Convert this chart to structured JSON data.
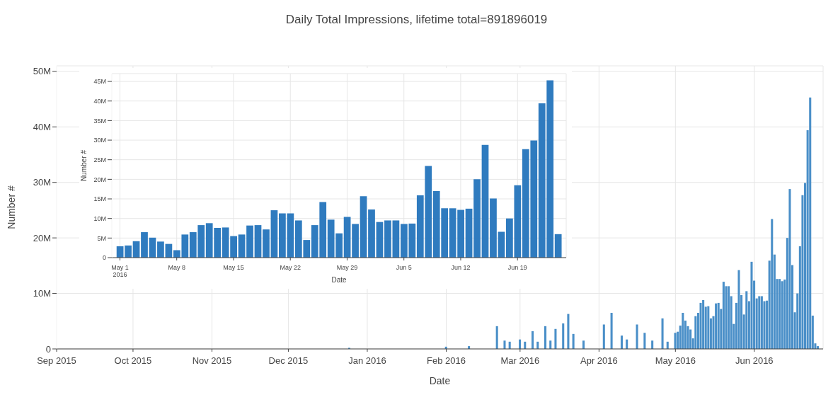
{
  "chart_data": [
    {
      "type": "bar",
      "title": "Daily Total Impressions, lifetime total=891896019",
      "xlabel": "Date",
      "ylabel": "Number #",
      "color": "#4a8fc8",
      "grid": true,
      "x": [
        "2015-12-25",
        "2016-02-01",
        "2016-02-10",
        "2016-02-18",
        "2016-02-21",
        "2016-02-24",
        "2016-02-26",
        "2016-03-01",
        "2016-03-03",
        "2016-03-06",
        "2016-03-08",
        "2016-03-11",
        "2016-03-13",
        "2016-03-15",
        "2016-03-18",
        "2016-03-20",
        "2016-03-22",
        "2016-03-26",
        "2016-04-01",
        "2016-04-03",
        "2016-04-06",
        "2016-04-10",
        "2016-04-12",
        "2016-04-16",
        "2016-04-19",
        "2016-04-22",
        "2016-04-26",
        "2016-04-28",
        "2016-05-01",
        "2016-05-02",
        "2016-05-03",
        "2016-05-04",
        "2016-05-05",
        "2016-05-06",
        "2016-05-07",
        "2016-05-08",
        "2016-05-09",
        "2016-05-10",
        "2016-05-11",
        "2016-05-12",
        "2016-05-13",
        "2016-05-14",
        "2016-05-15",
        "2016-05-16",
        "2016-05-17",
        "2016-05-18",
        "2016-05-19",
        "2016-05-20",
        "2016-05-21",
        "2016-05-22",
        "2016-05-23",
        "2016-05-24",
        "2016-05-25",
        "2016-05-26",
        "2016-05-27",
        "2016-05-28",
        "2016-05-29",
        "2016-05-30",
        "2016-05-31",
        "2016-06-01",
        "2016-06-02",
        "2016-06-03",
        "2016-06-04",
        "2016-06-05",
        "2016-06-06",
        "2016-06-07",
        "2016-06-08",
        "2016-06-09",
        "2016-06-10",
        "2016-06-11",
        "2016-06-12",
        "2016-06-13",
        "2016-06-14",
        "2016-06-15",
        "2016-06-16",
        "2016-06-17",
        "2016-06-18",
        "2016-06-19",
        "2016-06-20",
        "2016-06-21",
        "2016-06-22",
        "2016-06-23",
        "2016-06-24",
        "2016-06-25",
        "2016-06-26"
      ],
      "values": [
        200000,
        400000,
        500000,
        null,
        4100000,
        1500000,
        1300000,
        1700000,
        1300000,
        3200000,
        1300000,
        4100000,
        1500000,
        3600000,
        4600000,
        6300000,
        2700000,
        1500000,
        null,
        4400000,
        6500000,
        2400000,
        1700000,
        4400000,
        2900000,
        1500000,
        5500000,
        1300000,
        2900000,
        3100000,
        4200000,
        6500000,
        5100000,
        4100000,
        3500000,
        1900000,
        5900000,
        6500000,
        8300000,
        8800000,
        7600000,
        7700000,
        5500000,
        5900000,
        8200000,
        8300000,
        7200000,
        12100000,
        11300000,
        11300000,
        9500000,
        4500000,
        8300000,
        14200000,
        9700000,
        6200000,
        10400000,
        8600000,
        15700000,
        12300000,
        9100000,
        9500000,
        9500000,
        8600000,
        8700000,
        15900000,
        23400000,
        17000000,
        12600000,
        12600000,
        12200000,
        12500000,
        20000000,
        28800000,
        15100000,
        6600000,
        10000000,
        18500000,
        27700000,
        29900000,
        39400000,
        45300000,
        6000000,
        1000000,
        500000
      ],
      "xlim": [
        "2015-09-01",
        "2016-06-28"
      ],
      "xticks": [
        {
          "value": "2015-09-01",
          "label": "Sep 2015"
        },
        {
          "value": "2015-10-01",
          "label": "Oct 2015"
        },
        {
          "value": "2015-11-01",
          "label": "Nov 2015"
        },
        {
          "value": "2015-12-01",
          "label": "Dec 2015"
        },
        {
          "value": "2016-01-01",
          "label": "Jan 2016"
        },
        {
          "value": "2016-02-01",
          "label": "Feb 2016"
        },
        {
          "value": "2016-03-01",
          "label": "Mar 2016"
        },
        {
          "value": "2016-04-01",
          "label": "Apr 2016"
        },
        {
          "value": "2016-05-01",
          "label": "May 2016"
        },
        {
          "value": "2016-06-01",
          "label": "Jun 2016"
        }
      ],
      "ylim": [
        0,
        51000000
      ],
      "yticks": [
        0,
        {
          "value": 10000000,
          "label": "10M"
        },
        {
          "value": 20000000,
          "label": "20M"
        },
        {
          "value": 30000000,
          "label": "30M"
        },
        {
          "value": 40000000,
          "label": "40M"
        },
        {
          "value": 50000000,
          "label": "50M"
        }
      ]
    },
    {
      "type": "bar",
      "xlabel": "Date",
      "ylabel": "Number #",
      "color": "#2f7bbf",
      "grid": true,
      "x": [
        "2016-05-01",
        "2016-05-02",
        "2016-05-03",
        "2016-05-04",
        "2016-05-05",
        "2016-05-06",
        "2016-05-07",
        "2016-05-08",
        "2016-05-09",
        "2016-05-10",
        "2016-05-11",
        "2016-05-12",
        "2016-05-13",
        "2016-05-14",
        "2016-05-15",
        "2016-05-16",
        "2016-05-17",
        "2016-05-18",
        "2016-05-19",
        "2016-05-20",
        "2016-05-21",
        "2016-05-22",
        "2016-05-23",
        "2016-05-24",
        "2016-05-25",
        "2016-05-26",
        "2016-05-27",
        "2016-05-28",
        "2016-05-29",
        "2016-05-30",
        "2016-05-31",
        "2016-06-01",
        "2016-06-02",
        "2016-06-03",
        "2016-06-04",
        "2016-06-05",
        "2016-06-06",
        "2016-06-07",
        "2016-06-08",
        "2016-06-09",
        "2016-06-10",
        "2016-06-11",
        "2016-06-12",
        "2016-06-13",
        "2016-06-14",
        "2016-06-15",
        "2016-06-16",
        "2016-06-17",
        "2016-06-18",
        "2016-06-19",
        "2016-06-20",
        "2016-06-21",
        "2016-06-22",
        "2016-06-23",
        "2016-06-24"
      ],
      "values": [
        2900000,
        3100000,
        4200000,
        6500000,
        5100000,
        4100000,
        3500000,
        1900000,
        5900000,
        6500000,
        8300000,
        8800000,
        7600000,
        7700000,
        5500000,
        5900000,
        8200000,
        8300000,
        7200000,
        12100000,
        11300000,
        11300000,
        9500000,
        4500000,
        8300000,
        14200000,
        9700000,
        6200000,
        10400000,
        8600000,
        15700000,
        12300000,
        9100000,
        9500000,
        9500000,
        8600000,
        8700000,
        15900000,
        23400000,
        17000000,
        12600000,
        12600000,
        12200000,
        12500000,
        20000000,
        28800000,
        15100000,
        6600000,
        10000000,
        18500000,
        27700000,
        29900000,
        39400000,
        45300000,
        6000000
      ],
      "xlim": [
        "2016-04-30",
        "2016-06-25"
      ],
      "xticks": [
        {
          "value": "2016-05-01",
          "label": "May 1\n2016"
        },
        {
          "value": "2016-05-08",
          "label": "May 8"
        },
        {
          "value": "2016-05-15",
          "label": "May 15"
        },
        {
          "value": "2016-05-22",
          "label": "May 22"
        },
        {
          "value": "2016-05-29",
          "label": "May 29"
        },
        {
          "value": "2016-06-05",
          "label": "Jun 5"
        },
        {
          "value": "2016-06-12",
          "label": "Jun 12"
        },
        {
          "value": "2016-06-19",
          "label": "Jun 19"
        }
      ],
      "ylim": [
        0,
        47000000
      ],
      "yticks": [
        0,
        {
          "value": 5000000,
          "label": "5M"
        },
        {
          "value": 10000000,
          "label": "10M"
        },
        {
          "value": 15000000,
          "label": "15M"
        },
        {
          "value": 20000000,
          "label": "20M"
        },
        {
          "value": 25000000,
          "label": "25M"
        },
        {
          "value": 30000000,
          "label": "30M"
        },
        {
          "value": 35000000,
          "label": "35M"
        },
        {
          "value": 40000000,
          "label": "40M"
        },
        {
          "value": 45000000,
          "label": "45M"
        }
      ]
    }
  ]
}
